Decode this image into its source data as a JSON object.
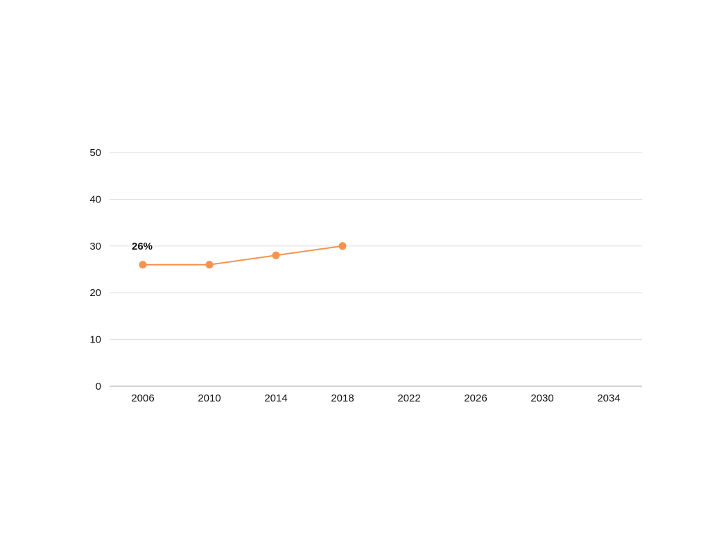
{
  "chart_data": {
    "type": "line",
    "title": "",
    "xlabel": "",
    "ylabel": "",
    "x": [
      "2006",
      "2010",
      "2014",
      "2018"
    ],
    "categories": [
      "2006",
      "2010",
      "2014",
      "2018",
      "2022",
      "2026",
      "2030",
      "2034"
    ],
    "series": [
      {
        "values": [
          26,
          26,
          28,
          30
        ],
        "color": "#F7924F"
      }
    ],
    "ylim": [
      0,
      50
    ],
    "yticks": [
      0,
      10,
      20,
      30,
      40,
      50
    ],
    "grid": true,
    "annotations": [
      {
        "text": "26%",
        "x": "2006",
        "y": 26
      }
    ],
    "colors": {
      "line": "#F7924F",
      "grid": "#dcdcdc",
      "axis": "#b8b8b8"
    }
  }
}
